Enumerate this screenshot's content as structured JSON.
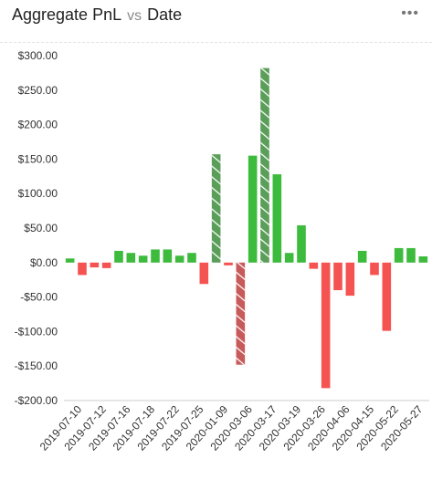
{
  "header": {
    "metric": "Aggregate PnL",
    "vs": "vs",
    "dimension": "Date",
    "menu_icon": "more-horizontal-icon"
  },
  "colors": {
    "positive": "#3dbb3d",
    "negative": "#f55252",
    "positive_highlight": "#5a9e5a",
    "negative_highlight": "#c75a5a",
    "axis": "#cccccc"
  },
  "chart_data": {
    "type": "bar",
    "title": "",
    "xlabel": "",
    "ylabel": "",
    "ylim": [
      -200,
      300
    ],
    "yticks": [
      -200,
      -150,
      -100,
      -50,
      0,
      50,
      100,
      150,
      200,
      250,
      300
    ],
    "ytick_labels": [
      "-$200.00",
      "-$150.00",
      "-$100.00",
      "-$50.00",
      "$0.00",
      "$50.00",
      "$100.00",
      "$150.00",
      "$200.00",
      "$250.00",
      "$300.00"
    ],
    "xtick_labels": [
      "2019-07-10",
      "2019-07-12",
      "2019-07-16",
      "2019-07-18",
      "2019-07-22",
      "2019-07-25",
      "2020-01-09",
      "2020-03-06",
      "2020-03-17",
      "2020-03-19",
      "2020-03-26",
      "2020-04-06",
      "2020-04-15",
      "2020-05-22",
      "2020-05-27"
    ],
    "values": [
      6,
      -18,
      -7,
      -8,
      17,
      14,
      10,
      19,
      19,
      10,
      14,
      -31,
      157,
      -4,
      -148,
      155,
      282,
      128,
      14,
      54,
      -9,
      -182,
      -40,
      -48,
      17,
      -18,
      -99,
      21,
      21,
      9
    ],
    "highlighted": [
      12,
      14,
      16
    ],
    "grid": false,
    "legend": "none"
  }
}
